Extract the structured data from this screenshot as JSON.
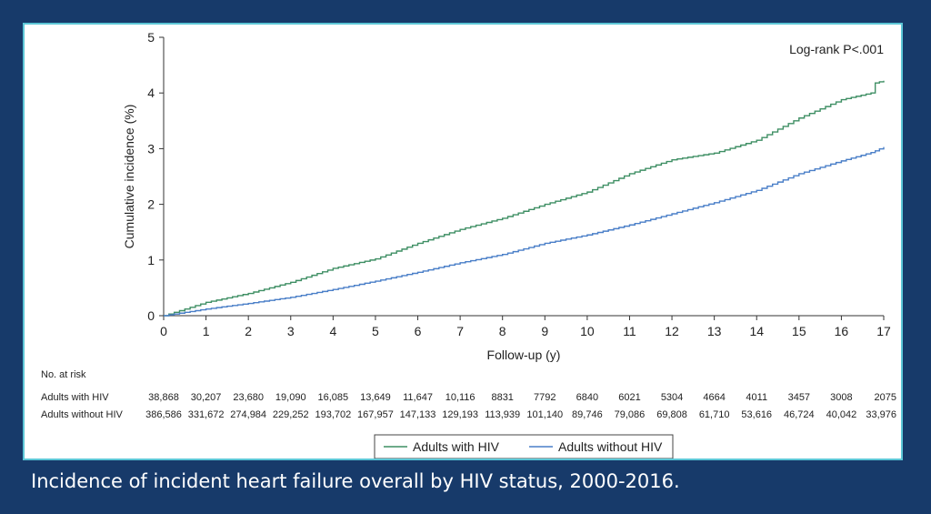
{
  "caption": "Incidence of incident heart failure overall by HIV status, 2000-2016.",
  "chart_data": {
    "type": "line",
    "title": "",
    "xlabel": "Follow-up (y)",
    "ylabel": "Cumulative incidence (%)",
    "xlim": [
      0,
      17
    ],
    "ylim": [
      0,
      5
    ],
    "xticks": [
      0,
      1,
      2,
      3,
      4,
      5,
      6,
      7,
      8,
      9,
      10,
      11,
      12,
      13,
      14,
      15,
      16,
      17
    ],
    "yticks": [
      0,
      1,
      2,
      3,
      4,
      5
    ],
    "grid": false,
    "annotation": "Log-rank P<.001",
    "legend_position": "bottom-center",
    "x": [
      0,
      1,
      2,
      3,
      4,
      5,
      6,
      7,
      8,
      9,
      10,
      11,
      12,
      13,
      14,
      15,
      16,
      16.7,
      16.8,
      17
    ],
    "series": [
      {
        "name": "Adults with HIV",
        "color": "#3f8f64",
        "values": [
          0,
          0.24,
          0.4,
          0.6,
          0.85,
          1.02,
          1.3,
          1.55,
          1.75,
          2.0,
          2.22,
          2.55,
          2.8,
          2.92,
          3.15,
          3.55,
          3.88,
          4.0,
          4.18,
          4.22
        ]
      },
      {
        "name": "Adults without HIV",
        "color": "#4a7fc8",
        "values": [
          0,
          0.12,
          0.22,
          0.33,
          0.47,
          0.62,
          0.78,
          0.95,
          1.1,
          1.3,
          1.45,
          1.63,
          1.83,
          2.03,
          2.25,
          2.55,
          2.78,
          2.93,
          2.96,
          3.03
        ]
      }
    ],
    "risk_table": {
      "title": "No. at risk",
      "rows": [
        {
          "label": "Adults with HIV",
          "values": [
            "38,868",
            "30,207",
            "23,680",
            "19,090",
            "16,085",
            "13,649",
            "11,647",
            "10,116",
            "8831",
            "7792",
            "6840",
            "6021",
            "5304",
            "4664",
            "4011",
            "3457",
            "3008",
            "2075"
          ]
        },
        {
          "label": "Adults without HIV",
          "values": [
            "386,586",
            "331,672",
            "274,984",
            "229,252",
            "193,702",
            "167,957",
            "147,133",
            "129,193",
            "113,939",
            "101,140",
            "89,746",
            "79,086",
            "69,808",
            "61,710",
            "53,616",
            "46,724",
            "40,042",
            "33,976"
          ]
        }
      ]
    }
  }
}
